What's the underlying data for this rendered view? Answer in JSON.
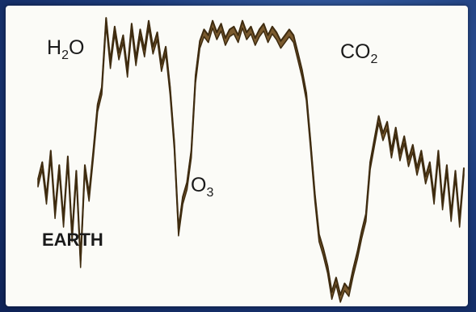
{
  "chart_data": {
    "type": "line",
    "title": "EARTH",
    "xlabel": "",
    "ylabel": "",
    "grid": false,
    "legend": "none",
    "colors": {
      "fill": "#7a5a2e",
      "stroke": "#3f2c10",
      "background": "#fbfbf7"
    },
    "series": [
      {
        "x": [
          0,
          1,
          2,
          3,
          4,
          5,
          6,
          7,
          8,
          9,
          10,
          11,
          12,
          13,
          14,
          15,
          16,
          17,
          18,
          19,
          20,
          21,
          22,
          23,
          24,
          25,
          26,
          27,
          28,
          29,
          30,
          31,
          32,
          33,
          34,
          35,
          36,
          37,
          38,
          39,
          40,
          41,
          42,
          43,
          44,
          45,
          46,
          47,
          48,
          49,
          50,
          51,
          52,
          53,
          54,
          55,
          56,
          57,
          58,
          59,
          60,
          61,
          62,
          63,
          64,
          65,
          66,
          67,
          68,
          69,
          70,
          71,
          72,
          73,
          74,
          75,
          76,
          77,
          78,
          79,
          80,
          81,
          82,
          83,
          84,
          85,
          86,
          87,
          88,
          89,
          90,
          91,
          92,
          93,
          94,
          95,
          96,
          97,
          98,
          99,
          100
        ],
        "values": [
          0.42,
          0.48,
          0.36,
          0.52,
          0.31,
          0.47,
          0.28,
          0.5,
          0.23,
          0.45,
          0.14,
          0.47,
          0.37,
          0.52,
          0.68,
          0.74,
          0.98,
          0.83,
          0.95,
          0.86,
          0.92,
          0.8,
          0.96,
          0.84,
          0.94,
          0.87,
          0.97,
          0.88,
          0.93,
          0.82,
          0.88,
          0.74,
          0.55,
          0.25,
          0.36,
          0.41,
          0.52,
          0.78,
          0.9,
          0.94,
          0.92,
          0.97,
          0.93,
          0.96,
          0.91,
          0.94,
          0.95,
          0.92,
          0.97,
          0.93,
          0.95,
          0.91,
          0.94,
          0.96,
          0.92,
          0.95,
          0.93,
          0.9,
          0.92,
          0.94,
          0.92,
          0.86,
          0.8,
          0.72,
          0.55,
          0.37,
          0.23,
          0.18,
          0.12,
          0.03,
          0.08,
          0.02,
          0.06,
          0.04,
          0.11,
          0.17,
          0.24,
          0.3,
          0.48,
          0.56,
          0.64,
          0.58,
          0.62,
          0.52,
          0.6,
          0.51,
          0.57,
          0.49,
          0.54,
          0.46,
          0.52,
          0.43,
          0.48,
          0.36,
          0.52,
          0.34,
          0.47,
          0.3,
          0.45,
          0.28,
          0.46
        ]
      }
    ],
    "annotations": [
      {
        "text": "H",
        "sub": "2",
        "tail": "O"
      },
      {
        "text": "O",
        "sub": "3",
        "tail": ""
      },
      {
        "text": "CO",
        "sub": "2",
        "tail": ""
      }
    ]
  }
}
